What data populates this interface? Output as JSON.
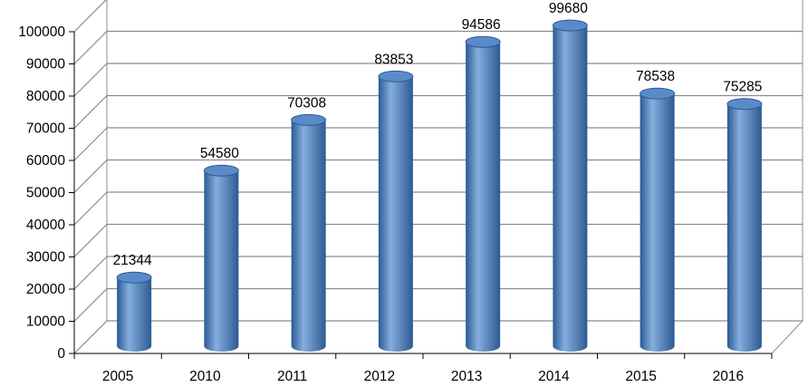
{
  "chart_data": {
    "type": "bar",
    "style": "3d-cylinder",
    "categories": [
      "2005",
      "2010",
      "2011",
      "2012",
      "2013",
      "2014",
      "2015",
      "2016"
    ],
    "values": [
      21344,
      54580,
      70308,
      83853,
      94586,
      99680,
      78538,
      75285
    ],
    "value_labels": [
      "21344",
      "54580",
      "70308",
      "83853",
      "94586",
      "99680",
      "78538",
      "75285"
    ],
    "ylim": [
      0,
      100000
    ],
    "yticks": [
      0,
      10000,
      20000,
      30000,
      40000,
      50000,
      60000,
      70000,
      80000,
      90000,
      100000
    ],
    "ytick_labels": [
      "0",
      "10000",
      "20000",
      "30000",
      "40000",
      "50000",
      "60000",
      "70000",
      "80000",
      "90000",
      "100000"
    ],
    "title": "",
    "xlabel": "",
    "ylabel": "",
    "grid": true,
    "legend": "none",
    "colors": {
      "bar": "#4F81BD",
      "bar_dark": "#2B5A93",
      "bar_light": "#86AEDD",
      "bar_top": "#5B8ACA",
      "grid": "#8C8C8C"
    }
  }
}
